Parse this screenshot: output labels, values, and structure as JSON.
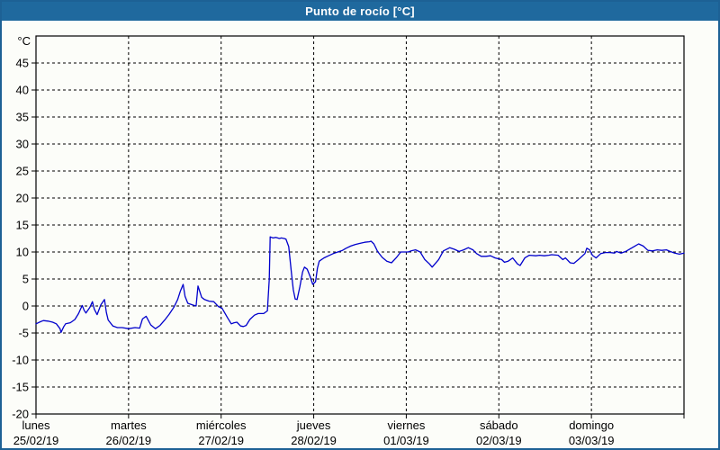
{
  "window": {
    "title": "Punto de rocío [°C]",
    "title_bar_color": "#1f699e",
    "border_color": "#1d6195",
    "background_color": "#fcfdf9"
  },
  "chart_data": {
    "type": "line",
    "title": "Punto de rocío [°C]",
    "unit_label": "°C",
    "ylabel": "°C",
    "ylim": [
      -20,
      50
    ],
    "ytick_step": 5,
    "yticks": [
      45,
      40,
      35,
      30,
      25,
      20,
      15,
      10,
      5,
      0,
      -5,
      -10,
      -15,
      -20
    ],
    "grid": "dashed",
    "legend": "none",
    "axis_color": "#000000",
    "x_days": [
      {
        "name": "lunes",
        "date": "25/02/19"
      },
      {
        "name": "martes",
        "date": "26/02/19"
      },
      {
        "name": "miércoles",
        "date": "27/02/19"
      },
      {
        "name": "jueves",
        "date": "28/02/19"
      },
      {
        "name": "viernes",
        "date": "01/03/19"
      },
      {
        "name": "sábado",
        "date": "02/03/19"
      },
      {
        "name": "domingo",
        "date": "03/03/19"
      }
    ],
    "x_span_days": 7,
    "series": [
      {
        "name": "Punto de rocío",
        "color": "#0000cc",
        "points": [
          [
            0.0,
            -3.3
          ],
          [
            0.05,
            -2.9
          ],
          [
            0.08,
            -2.7
          ],
          [
            0.13,
            -2.8
          ],
          [
            0.18,
            -3.0
          ],
          [
            0.22,
            -3.3
          ],
          [
            0.26,
            -4.2
          ],
          [
            0.27,
            -4.9
          ],
          [
            0.3,
            -3.8
          ],
          [
            0.32,
            -3.3
          ],
          [
            0.37,
            -3.1
          ],
          [
            0.42,
            -2.5
          ],
          [
            0.46,
            -1.4
          ],
          [
            0.48,
            -0.6
          ],
          [
            0.5,
            0.1
          ],
          [
            0.52,
            -0.8
          ],
          [
            0.54,
            -1.3
          ],
          [
            0.58,
            -0.3
          ],
          [
            0.61,
            0.8
          ],
          [
            0.63,
            -0.6
          ],
          [
            0.66,
            -1.6
          ],
          [
            0.7,
            0.2
          ],
          [
            0.74,
            1.2
          ],
          [
            0.76,
            -1.2
          ],
          [
            0.78,
            -2.6
          ],
          [
            0.83,
            -3.7
          ],
          [
            0.88,
            -4.0
          ],
          [
            0.93,
            -4.0
          ],
          [
            1.0,
            -4.2
          ],
          [
            1.07,
            -4.0
          ],
          [
            1.12,
            -4.1
          ],
          [
            1.15,
            -2.4
          ],
          [
            1.19,
            -1.9
          ],
          [
            1.24,
            -3.5
          ],
          [
            1.29,
            -4.2
          ],
          [
            1.34,
            -3.6
          ],
          [
            1.39,
            -2.6
          ],
          [
            1.44,
            -1.5
          ],
          [
            1.49,
            -0.2
          ],
          [
            1.53,
            1.2
          ],
          [
            1.56,
            2.8
          ],
          [
            1.59,
            4.0
          ],
          [
            1.61,
            1.8
          ],
          [
            1.64,
            0.5
          ],
          [
            1.69,
            0.2
          ],
          [
            1.73,
            0.0
          ],
          [
            1.75,
            3.7
          ],
          [
            1.79,
            1.6
          ],
          [
            1.82,
            1.2
          ],
          [
            1.87,
            0.9
          ],
          [
            1.92,
            0.8
          ],
          [
            1.97,
            -0.1
          ],
          [
            2.01,
            -0.4
          ],
          [
            2.07,
            -2.2
          ],
          [
            2.11,
            -3.3
          ],
          [
            2.14,
            -3.1
          ],
          [
            2.17,
            -3.0
          ],
          [
            2.21,
            -3.7
          ],
          [
            2.24,
            -3.8
          ],
          [
            2.27,
            -3.6
          ],
          [
            2.31,
            -2.5
          ],
          [
            2.36,
            -1.7
          ],
          [
            2.4,
            -1.4
          ],
          [
            2.46,
            -1.4
          ],
          [
            2.5,
            -0.9
          ],
          [
            2.52,
            5.0
          ],
          [
            2.53,
            12.8
          ],
          [
            2.56,
            12.6
          ],
          [
            2.59,
            12.7
          ],
          [
            2.63,
            12.5
          ],
          [
            2.65,
            12.6
          ],
          [
            2.68,
            12.5
          ],
          [
            2.7,
            12.4
          ],
          [
            2.73,
            11.0
          ],
          [
            2.76,
            6.0
          ],
          [
            2.78,
            3.0
          ],
          [
            2.8,
            1.3
          ],
          [
            2.82,
            1.2
          ],
          [
            2.85,
            3.5
          ],
          [
            2.88,
            6.3
          ],
          [
            2.9,
            7.2
          ],
          [
            2.93,
            6.8
          ],
          [
            2.96,
            5.5
          ],
          [
            2.99,
            4.0
          ],
          [
            3.02,
            4.5
          ],
          [
            3.04,
            7.0
          ],
          [
            3.06,
            8.3
          ],
          [
            3.11,
            8.9
          ],
          [
            3.16,
            9.3
          ],
          [
            3.21,
            9.7
          ],
          [
            3.26,
            10.0
          ],
          [
            3.31,
            10.3
          ],
          [
            3.35,
            10.7
          ],
          [
            3.4,
            11.1
          ],
          [
            3.45,
            11.4
          ],
          [
            3.5,
            11.6
          ],
          [
            3.55,
            11.8
          ],
          [
            3.6,
            11.9
          ],
          [
            3.62,
            12.0
          ],
          [
            3.65,
            11.5
          ],
          [
            3.67,
            10.8
          ],
          [
            3.69,
            10.1
          ],
          [
            3.74,
            9.0
          ],
          [
            3.79,
            8.3
          ],
          [
            3.84,
            8.0
          ],
          [
            3.89,
            8.9
          ],
          [
            3.94,
            10.0
          ],
          [
            4.02,
            10.0
          ],
          [
            4.05,
            10.2
          ],
          [
            4.1,
            10.4
          ],
          [
            4.15,
            10.0
          ],
          [
            4.2,
            8.6
          ],
          [
            4.25,
            7.8
          ],
          [
            4.28,
            7.2
          ],
          [
            4.35,
            8.6
          ],
          [
            4.4,
            10.2
          ],
          [
            4.47,
            10.8
          ],
          [
            4.52,
            10.5
          ],
          [
            4.57,
            10.1
          ],
          [
            4.62,
            10.4
          ],
          [
            4.67,
            10.8
          ],
          [
            4.72,
            10.4
          ],
          [
            4.76,
            9.7
          ],
          [
            4.81,
            9.2
          ],
          [
            4.86,
            9.2
          ],
          [
            4.91,
            9.3
          ],
          [
            4.96,
            8.9
          ],
          [
            5.03,
            8.6
          ],
          [
            5.06,
            8.1
          ],
          [
            5.1,
            8.3
          ],
          [
            5.15,
            8.9
          ],
          [
            5.2,
            7.8
          ],
          [
            5.23,
            7.5
          ],
          [
            5.28,
            8.9
          ],
          [
            5.33,
            9.4
          ],
          [
            5.4,
            9.3
          ],
          [
            5.44,
            9.4
          ],
          [
            5.49,
            9.3
          ],
          [
            5.54,
            9.4
          ],
          [
            5.57,
            9.5
          ],
          [
            5.64,
            9.4
          ],
          [
            5.69,
            8.6
          ],
          [
            5.72,
            8.9
          ],
          [
            5.77,
            8.0
          ],
          [
            5.81,
            7.9
          ],
          [
            5.86,
            8.6
          ],
          [
            5.93,
            9.7
          ],
          [
            5.95,
            10.7
          ],
          [
            5.98,
            10.4
          ],
          [
            6.01,
            9.4
          ],
          [
            6.05,
            8.9
          ],
          [
            6.1,
            9.7
          ],
          [
            6.15,
            9.9
          ],
          [
            6.2,
            9.9
          ],
          [
            6.25,
            9.8
          ],
          [
            6.27,
            10.1
          ],
          [
            6.32,
            9.8
          ],
          [
            6.37,
            10.1
          ],
          [
            6.42,
            10.6
          ],
          [
            6.47,
            11.1
          ],
          [
            6.51,
            11.5
          ],
          [
            6.56,
            11.1
          ],
          [
            6.61,
            10.3
          ],
          [
            6.66,
            10.2
          ],
          [
            6.71,
            10.4
          ],
          [
            6.76,
            10.3
          ],
          [
            6.81,
            10.4
          ],
          [
            6.85,
            10.1
          ],
          [
            6.9,
            9.8
          ],
          [
            6.95,
            9.6
          ],
          [
            7.0,
            9.8
          ]
        ]
      }
    ]
  }
}
